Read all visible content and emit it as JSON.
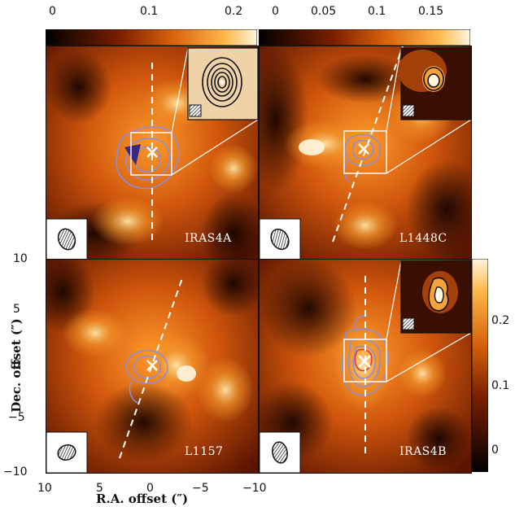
{
  "colorbars": {
    "left_ticks": [
      "0",
      "0.1",
      "0.2"
    ],
    "right_ticks": [
      "0",
      "0.05",
      "0.1",
      "0.15"
    ],
    "side_ticks": [
      "0.2",
      "0.1",
      "0"
    ]
  },
  "axes": {
    "y_label": "Dec. offset (″)",
    "x_label": "R.A. offset (″)",
    "y_ticks_top": [
      "10"
    ],
    "y_ticks_bottom": [
      "5",
      "0",
      "−5",
      "−10"
    ],
    "x_ticks": [
      "10",
      "5",
      "0",
      "−5",
      "−10"
    ]
  },
  "panels": [
    {
      "name": "IRAS4A"
    },
    {
      "name": "L1448C"
    },
    {
      "name": "L1157"
    },
    {
      "name": "IRAS4B"
    }
  ],
  "colors": {
    "map_dark": "#1a0600",
    "map_mid": "#c8500a",
    "map_bright": "#ffd27a",
    "contour": "#8a8ee0",
    "outflow_axis": "#ffffff"
  }
}
